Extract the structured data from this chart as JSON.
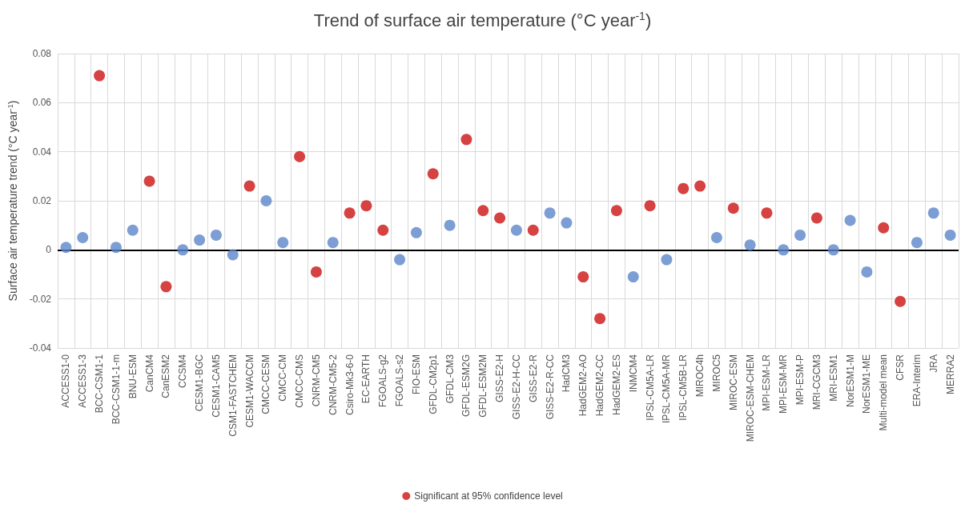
{
  "chart_data": {
    "type": "scatter",
    "title": "Trend of surface air temperature (°C year$^{-1}$)",
    "ylabel": "Surface air temperature trend (°C year$^{-1}$)",
    "categories": [
      "ACCESS1-0",
      "ACCESS1-3",
      "BCC-CSM1-1",
      "BCC-CSM1-1-m",
      "BNU-ESM",
      "CanCM4",
      "CanESM2",
      "CCSM4",
      "CESM1-BGC",
      "CESM1-CAM5",
      "CSM1-FASTCHEM",
      "CESM1-WACCM",
      "CMCC-CESM",
      "CMCC-CM",
      "CMCC-CMS",
      "CNRM-CM5",
      "CNRM-CM5-2",
      "Csiro-Mk3-6-0",
      "EC-EARTH",
      "FGOALS-g2",
      "FGOALS-s2",
      "FIO-ESM",
      "GFDL-CM2p1",
      "GFDL-CM3",
      "GFDL-ESM2G",
      "GFDL-ESM2M",
      "GISS-E2-H",
      "GISS-E2-H-CC",
      "GISS-E2-R",
      "GISS-E2-R-CC",
      "HadCM3",
      "HadGEM2-AO",
      "HadGEM2-CC",
      "HadGEM2-ES",
      "INMCM4",
      "IPSL-CM5A-LR",
      "IPSL-CM5A-MR",
      "IPSL-CM5B-LR",
      "MIROC4h",
      "MIROC5",
      "MIROC-ESM",
      "MIROC-ESM-CHEM",
      "MPI-ESM-LR",
      "MPI-ESM-MR",
      "MPI-ESM-P",
      "MRI-CGCM3",
      "MRI-ESM1",
      "NorESM1-M",
      "NorESM1-ME",
      "Multi-model mean",
      "CFSR",
      "ERA-Interim",
      "JRA",
      "MERRA2"
    ],
    "series": [
      {
        "color": "#5b86c9",
        "values": [
          0.001,
          0.005,
          null,
          0.001,
          0.008,
          null,
          null,
          0.0,
          0.004,
          0.006,
          -0.002,
          null,
          0.02,
          0.003,
          null,
          null,
          0.003,
          null,
          null,
          null,
          -0.004,
          0.007,
          null,
          0.01,
          null,
          null,
          null,
          0.008,
          null,
          0.015,
          0.011,
          null,
          null,
          null,
          -0.011,
          null,
          -0.004,
          null,
          null,
          0.005,
          null,
          0.002,
          null,
          0.0,
          0.006,
          null,
          0.0,
          0.012,
          -0.009,
          null,
          null,
          0.003,
          0.015,
          0.006
        ]
      },
      {
        "name": "Significant at 95% confidence level",
        "color": "#cc1111",
        "values": [
          null,
          null,
          0.071,
          null,
          null,
          0.028,
          -0.015,
          null,
          null,
          null,
          null,
          0.026,
          null,
          null,
          0.038,
          -0.009,
          null,
          0.015,
          0.018,
          0.008,
          null,
          null,
          0.031,
          null,
          0.045,
          0.016,
          0.013,
          null,
          0.008,
          null,
          null,
          -0.011,
          -0.028,
          0.016,
          null,
          0.018,
          null,
          0.025,
          0.026,
          null,
          0.017,
          null,
          0.015,
          null,
          null,
          0.013,
          null,
          null,
          null,
          0.009,
          -0.021,
          null,
          null,
          null
        ]
      }
    ],
    "ylim": [
      -0.04,
      0.08
    ],
    "yticks": [
      -0.04,
      -0.02,
      0,
      0.02,
      0.04,
      0.06,
      0.08
    ],
    "ref_lines": [
      {
        "axis": "y",
        "value": 0,
        "color": "#000000"
      }
    ],
    "grid": true,
    "legend": "bottom",
    "marker": "circle"
  }
}
